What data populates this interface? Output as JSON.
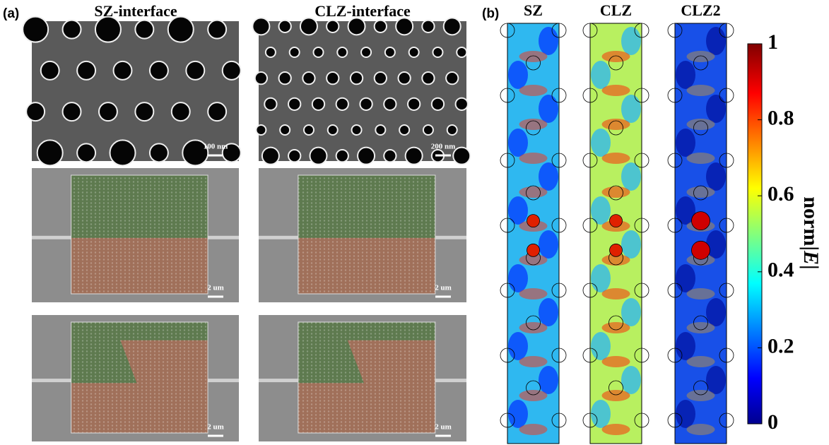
{
  "panel_a": {
    "label": "(a)",
    "columns": [
      "SZ-interface",
      "CLZ-interface"
    ],
    "scale_bars": [
      [
        "100 nm",
        "200 nm"
      ],
      [
        "2 um",
        "2 um"
      ],
      [
        "2 um",
        "2 um"
      ]
    ]
  },
  "panel_b": {
    "label": "(b)",
    "maps": [
      "SZ",
      "CLZ",
      "CLZ2"
    ],
    "colorbar": {
      "ticks": [
        0,
        0.2,
        0.4,
        0.6,
        0.8,
        1
      ],
      "label_start": "norm|",
      "label_var": "E",
      "label_end": "|"
    }
  }
}
